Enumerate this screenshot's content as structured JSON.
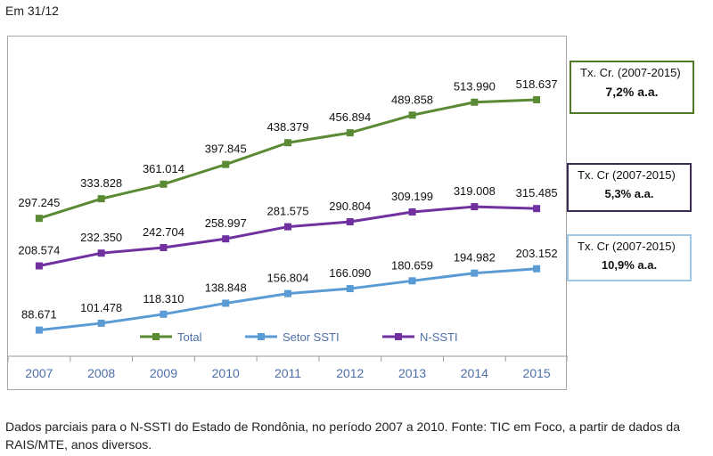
{
  "header": {
    "text": "Em 31/12"
  },
  "chart_data": {
    "type": "line",
    "categories": [
      "2007",
      "2008",
      "2009",
      "2010",
      "2011",
      "2012",
      "2013",
      "2014",
      "2015"
    ],
    "series": [
      {
        "name": "Total",
        "color": "#5a8a33",
        "values": [
          297245,
          333828,
          361014,
          397845,
          438379,
          456894,
          489858,
          513990,
          518637
        ],
        "labels": [
          "297.245",
          "333.828",
          "361.014",
          "397.845",
          "438.379",
          "456.894",
          "489.858",
          "513.990",
          "518.637"
        ]
      },
      {
        "name": "Setor SSTI",
        "color": "#5b9bd5",
        "values": [
          88671,
          101478,
          118310,
          138848,
          156804,
          166090,
          180659,
          194982,
          203152
        ],
        "labels": [
          "88.671",
          "101.478",
          "118.310",
          "138.848",
          "156.804",
          "166.090",
          "180.659",
          "194.982",
          "203.152"
        ]
      },
      {
        "name": "N-SSTI",
        "color": "#7030a0",
        "values": [
          208574,
          232350,
          242704,
          258997,
          281575,
          290804,
          309199,
          319008,
          315485
        ],
        "labels": [
          "208.574",
          "232.350",
          "242.704",
          "258.997",
          "281.575",
          "290.804",
          "309.199",
          "319.008",
          "315.485"
        ]
      }
    ],
    "legend_position": "bottom-inside",
    "grid": false,
    "axis_color": "#4f6fa8"
  },
  "notes": {
    "total": {
      "line1": "Tx. Cr. (2007-2015)",
      "line2": "7,2%  a.a."
    },
    "nssti": {
      "line1": "Tx. Cr (2007-2015)",
      "line2": "5,3% a.a."
    },
    "ssti": {
      "line1": "Tx. Cr (2007-2015)",
      "line2": "10,9% a.a."
    }
  },
  "footer": {
    "text": "Dados parciais para o N-SSTI do Estado de Rondônia, no período 2007 a 2010. Fonte: TIC em Foco, a partir de dados da RAIS/MTE, anos diversos."
  }
}
